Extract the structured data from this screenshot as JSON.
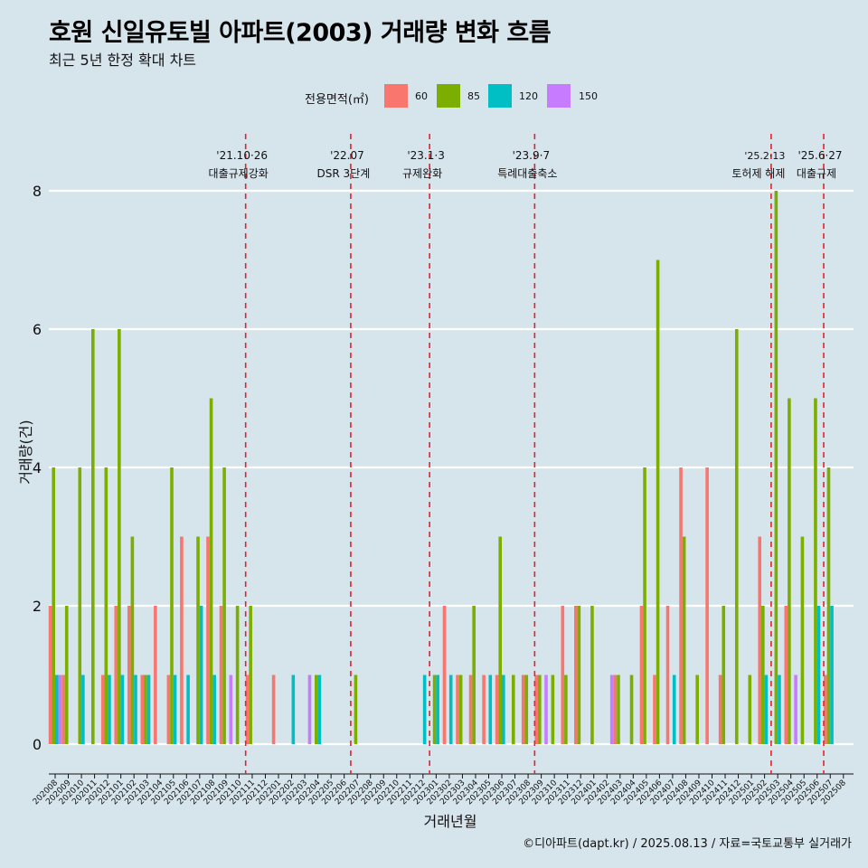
{
  "title": "호원 신일유토빌 아파트(2003) 거래량 변화 흐름",
  "subtitle": "최근 5년 한정 확대 차트",
  "caption": "©디아파트(dapt.kr) / 2025.08.13 / 자료=국토교통부 실거래가",
  "legend": {
    "title": "전용면적(㎡)",
    "items": [
      {
        "label": "60",
        "color": "#F8766D"
      },
      {
        "label": "85",
        "color": "#7CAE00"
      },
      {
        "label": "120",
        "color": "#00BFC4"
      },
      {
        "label": "150",
        "color": "#C77CFF"
      }
    ]
  },
  "chart_data": {
    "type": "bar",
    "xlabel": "거래년월",
    "ylabel": "거래량(건)",
    "ylim": [
      0,
      8
    ],
    "yticks": [
      0,
      2,
      4,
      6,
      8
    ],
    "categories": [
      "202008",
      "202009",
      "202010",
      "202011",
      "202012",
      "202101",
      "202102",
      "202103",
      "202104",
      "202105",
      "202106",
      "202107",
      "202108",
      "202109",
      "202110",
      "202111",
      "202112",
      "202201",
      "202202",
      "202203",
      "202204",
      "202205",
      "202206",
      "202207",
      "202208",
      "202209",
      "202210",
      "202211",
      "202212",
      "202301",
      "202302",
      "202303",
      "202304",
      "202305",
      "202306",
      "202307",
      "202308",
      "202309",
      "202310",
      "202311",
      "202312",
      "202401",
      "202402",
      "202403",
      "202404",
      "202405",
      "202406",
      "202407",
      "202408",
      "202409",
      "202410",
      "202411",
      "202412",
      "202501",
      "202502",
      "202503",
      "202504",
      "202505",
      "202506",
      "202507",
      "202508"
    ],
    "series": [
      {
        "name": "60",
        "color": "#F8766D",
        "values": [
          2,
          1,
          0,
          0,
          1,
          2,
          2,
          1,
          2,
          1,
          3,
          0,
          3,
          2,
          0,
          1,
          0,
          1,
          0,
          0,
          0,
          0,
          0,
          0,
          0,
          0,
          0,
          0,
          0,
          0,
          2,
          1,
          1,
          1,
          1,
          0,
          1,
          1,
          0,
          2,
          2,
          0,
          0,
          1,
          0,
          2,
          1,
          2,
          4,
          0,
          4,
          1,
          0,
          0,
          3,
          0,
          2,
          0,
          0,
          1,
          0
        ]
      },
      {
        "name": "85",
        "color": "#7CAE00",
        "values": [
          4,
          2,
          4,
          6,
          4,
          6,
          3,
          1,
          0,
          4,
          0,
          3,
          5,
          4,
          2,
          2,
          0,
          0,
          0,
          0,
          1,
          0,
          0,
          1,
          0,
          0,
          0,
          0,
          0,
          1,
          0,
          1,
          2,
          0,
          3,
          1,
          1,
          1,
          1,
          1,
          2,
          2,
          0,
          1,
          1,
          4,
          7,
          0,
          3,
          1,
          0,
          2,
          6,
          1,
          2,
          8,
          5,
          3,
          5,
          4,
          0
        ]
      },
      {
        "name": "120",
        "color": "#00BFC4",
        "values": [
          1,
          0,
          1,
          0,
          1,
          1,
          1,
          1,
          0,
          1,
          1,
          2,
          1,
          0,
          0,
          0,
          0,
          0,
          1,
          0,
          1,
          0,
          0,
          0,
          0,
          0,
          0,
          0,
          1,
          1,
          1,
          0,
          0,
          1,
          1,
          0,
          0,
          0,
          0,
          0,
          0,
          0,
          0,
          0,
          0,
          0,
          0,
          1,
          0,
          0,
          0,
          0,
          0,
          0,
          1,
          1,
          0,
          0,
          2,
          2,
          0
        ]
      },
      {
        "name": "150",
        "color": "#C77CFF",
        "values": [
          1,
          0,
          0,
          0,
          0,
          0,
          0,
          0,
          0,
          0,
          0,
          0,
          0,
          1,
          0,
          0,
          0,
          0,
          0,
          1,
          0,
          0,
          0,
          0,
          0,
          0,
          0,
          0,
          0,
          0,
          0,
          0,
          0,
          0,
          0,
          0,
          0,
          1,
          0,
          0,
          0,
          0,
          1,
          0,
          0,
          0,
          0,
          0,
          0,
          0,
          0,
          0,
          0,
          0,
          0,
          0,
          1,
          0,
          0,
          0,
          0
        ]
      }
    ],
    "events": [
      {
        "category": "202111",
        "date": "'21.10·26",
        "label": "대출규제강화"
      },
      {
        "category": "202207",
        "date": "'22.07",
        "label": "DSR 3단계"
      },
      {
        "category": "202301",
        "date": "'23.1·3",
        "label": "규제완화"
      },
      {
        "category": "202309",
        "date": "'23.9·7",
        "label": "특례대출축소"
      },
      {
        "category": "202503",
        "date": "'25.2·13",
        "label": "토허제 해제"
      },
      {
        "category": "202507",
        "date": "'25.6·27",
        "label": "대출규제"
      }
    ]
  }
}
